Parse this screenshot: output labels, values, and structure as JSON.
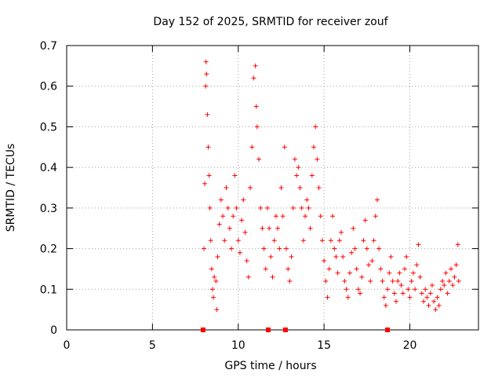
{
  "chart_data": {
    "type": "scatter",
    "title": "Day 152 of 2025, SRMTID for receiver zouf",
    "xlabel": "GPS time / hours",
    "ylabel": "SRMTID / TECUs",
    "xlim": [
      0,
      24
    ],
    "ylim": [
      0,
      0.7
    ],
    "xticks": [
      0,
      5,
      10,
      15,
      20
    ],
    "yticks": [
      0,
      0.1,
      0.2,
      0.3,
      0.4,
      0.5,
      0.6,
      0.7
    ],
    "ytick_labels": [
      "0",
      "0.1",
      "0.2",
      "0.3",
      "0.4",
      "0.5",
      "0.6",
      "0.7"
    ],
    "grid": true,
    "marker": "plus",
    "color": "#ff0000",
    "x_range_with_data": [
      7.9,
      22.9
    ],
    "series": [
      {
        "name": "SRMTID",
        "points": [
          [
            8.0,
            0.2
          ],
          [
            8.05,
            0.36
          ],
          [
            8.1,
            0.6
          ],
          [
            8.12,
            0.66
          ],
          [
            8.15,
            0.63
          ],
          [
            8.2,
            0.53
          ],
          [
            8.25,
            0.45
          ],
          [
            8.3,
            0.38
          ],
          [
            8.35,
            0.3
          ],
          [
            8.4,
            0.22
          ],
          [
            8.45,
            0.15
          ],
          [
            8.5,
            0.1
          ],
          [
            8.55,
            0.08
          ],
          [
            8.6,
            0.13
          ],
          [
            8.7,
            0.12
          ],
          [
            8.75,
            0.05
          ],
          [
            8.8,
            0.18
          ],
          [
            8.9,
            0.26
          ],
          [
            9.0,
            0.32
          ],
          [
            9.1,
            0.28
          ],
          [
            9.2,
            0.22
          ],
          [
            9.3,
            0.35
          ],
          [
            9.4,
            0.3
          ],
          [
            9.5,
            0.25
          ],
          [
            9.6,
            0.2
          ],
          [
            9.7,
            0.28
          ],
          [
            9.8,
            0.38
          ],
          [
            9.9,
            0.3
          ],
          [
            10.0,
            0.22
          ],
          [
            10.1,
            0.19
          ],
          [
            10.2,
            0.27
          ],
          [
            10.3,
            0.32
          ],
          [
            10.4,
            0.24
          ],
          [
            10.5,
            0.17
          ],
          [
            10.6,
            0.13
          ],
          [
            10.7,
            0.35
          ],
          [
            10.8,
            0.45
          ],
          [
            10.9,
            0.62
          ],
          [
            11.0,
            0.65
          ],
          [
            11.05,
            0.55
          ],
          [
            11.1,
            0.5
          ],
          [
            11.2,
            0.42
          ],
          [
            11.3,
            0.3
          ],
          [
            11.4,
            0.25
          ],
          [
            11.5,
            0.2
          ],
          [
            11.6,
            0.15
          ],
          [
            11.7,
            0.3
          ],
          [
            11.8,
            0.25
          ],
          [
            11.9,
            0.18
          ],
          [
            12.0,
            0.13
          ],
          [
            12.1,
            0.22
          ],
          [
            12.2,
            0.28
          ],
          [
            12.3,
            0.25
          ],
          [
            12.4,
            0.2
          ],
          [
            12.5,
            0.35
          ],
          [
            12.6,
            0.28
          ],
          [
            12.7,
            0.45
          ],
          [
            12.8,
            0.2
          ],
          [
            12.9,
            0.15
          ],
          [
            13.0,
            0.12
          ],
          [
            13.1,
            0.18
          ],
          [
            13.2,
            0.3
          ],
          [
            13.3,
            0.42
          ],
          [
            13.4,
            0.38
          ],
          [
            13.5,
            0.4
          ],
          [
            13.6,
            0.35
          ],
          [
            13.7,
            0.3
          ],
          [
            13.8,
            0.22
          ],
          [
            13.9,
            0.28
          ],
          [
            14.0,
            0.32
          ],
          [
            14.1,
            0.3
          ],
          [
            14.2,
            0.25
          ],
          [
            14.3,
            0.38
          ],
          [
            14.4,
            0.45
          ],
          [
            14.5,
            0.5
          ],
          [
            14.6,
            0.42
          ],
          [
            14.7,
            0.35
          ],
          [
            14.8,
            0.28
          ],
          [
            14.9,
            0.22
          ],
          [
            15.0,
            0.17
          ],
          [
            15.1,
            0.12
          ],
          [
            15.2,
            0.08
          ],
          [
            15.3,
            0.15
          ],
          [
            15.4,
            0.22
          ],
          [
            15.5,
            0.28
          ],
          [
            15.6,
            0.2
          ],
          [
            15.7,
            0.18
          ],
          [
            15.8,
            0.14
          ],
          [
            15.9,
            0.22
          ],
          [
            16.0,
            0.24
          ],
          [
            16.1,
            0.18
          ],
          [
            16.2,
            0.12
          ],
          [
            16.3,
            0.1
          ],
          [
            16.4,
            0.08
          ],
          [
            16.5,
            0.14
          ],
          [
            16.6,
            0.19
          ],
          [
            16.7,
            0.25
          ],
          [
            16.8,
            0.2
          ],
          [
            16.9,
            0.15
          ],
          [
            17.0,
            0.1
          ],
          [
            17.1,
            0.09
          ],
          [
            17.2,
            0.13
          ],
          [
            17.3,
            0.22
          ],
          [
            17.4,
            0.27
          ],
          [
            17.5,
            0.2
          ],
          [
            17.6,
            0.16
          ],
          [
            17.7,
            0.12
          ],
          [
            17.8,
            0.17
          ],
          [
            17.9,
            0.22
          ],
          [
            18.0,
            0.28
          ],
          [
            18.1,
            0.32
          ],
          [
            18.2,
            0.2
          ],
          [
            18.3,
            0.15
          ],
          [
            18.4,
            0.12
          ],
          [
            18.5,
            0.08
          ],
          [
            18.6,
            0.06
          ],
          [
            18.7,
            0.1
          ],
          [
            18.8,
            0.14
          ],
          [
            18.9,
            0.18
          ],
          [
            19.0,
            0.12
          ],
          [
            19.1,
            0.09
          ],
          [
            19.2,
            0.07
          ],
          [
            19.3,
            0.12
          ],
          [
            19.4,
            0.14
          ],
          [
            19.5,
            0.11
          ],
          [
            19.6,
            0.09
          ],
          [
            19.7,
            0.15
          ],
          [
            19.8,
            0.18
          ],
          [
            19.9,
            0.1
          ],
          [
            20.0,
            0.08
          ],
          [
            20.1,
            0.12
          ],
          [
            20.2,
            0.14
          ],
          [
            20.3,
            0.1
          ],
          [
            20.4,
            0.16
          ],
          [
            20.5,
            0.21
          ],
          [
            20.6,
            0.13
          ],
          [
            20.7,
            0.09
          ],
          [
            20.8,
            0.07
          ],
          [
            20.9,
            0.1
          ],
          [
            21.0,
            0.08
          ],
          [
            21.1,
            0.06
          ],
          [
            21.2,
            0.09
          ],
          [
            21.3,
            0.11
          ],
          [
            21.4,
            0.07
          ],
          [
            21.5,
            0.05
          ],
          [
            21.6,
            0.08
          ],
          [
            21.7,
            0.06
          ],
          [
            21.8,
            0.1
          ],
          [
            21.9,
            0.12
          ],
          [
            22.0,
            0.11
          ],
          [
            22.1,
            0.14
          ],
          [
            22.2,
            0.09
          ],
          [
            22.3,
            0.12
          ],
          [
            22.4,
            0.15
          ],
          [
            22.5,
            0.11
          ],
          [
            22.6,
            0.13
          ],
          [
            22.7,
            0.16
          ],
          [
            22.8,
            0.21
          ],
          [
            22.85,
            0.12
          ]
        ]
      }
    ],
    "zero_markers_x": [
      7.95,
      11.75,
      12.75,
      18.7
    ]
  }
}
